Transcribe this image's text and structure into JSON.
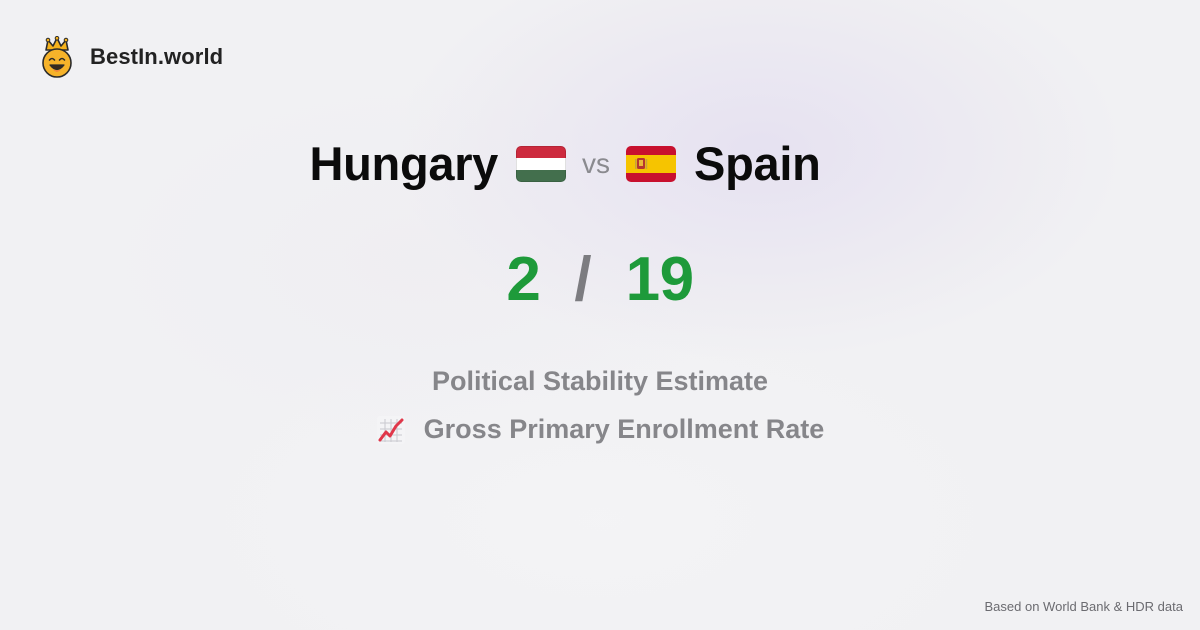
{
  "brand": {
    "name": "BestIn.world",
    "logo_icon": "crown-smiley-icon"
  },
  "comparison": {
    "left_country": "Hungary",
    "left_flag": "hungary-flag-icon",
    "vs_label": "vs",
    "right_country": "Spain",
    "right_flag": "spain-flag-icon"
  },
  "score": {
    "left": "2",
    "separator": "/",
    "right": "19",
    "color": "#1e9a3a"
  },
  "metrics": {
    "primary": "Political Stability Estimate",
    "secondary_icon": "chart-increasing-icon",
    "secondary": "Gross Primary Enrollment Rate"
  },
  "footer": {
    "source": "Based on World Bank & HDR data"
  }
}
